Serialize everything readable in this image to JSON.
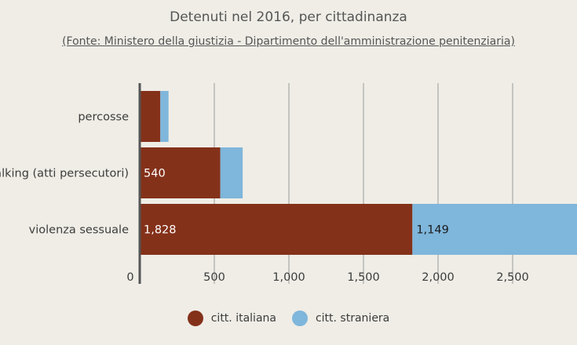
{
  "chart_data": {
    "type": "bar",
    "orientation": "horizontal",
    "stacked": true,
    "title": "Detenuti nel 2016, per cittadinanza",
    "subtitle": "(Fonte: Ministero della giustizia - Dipartimento dell'amministrazione penitenziaria)",
    "categories": [
      "percosse",
      "stalking (atti persecutori)",
      "violenza sessuale"
    ],
    "series": [
      {
        "name": "citt. italiana",
        "color": "#84311a",
        "values": [
          138,
          540,
          1828
        ],
        "labels": [
          "",
          "540",
          "1,828"
        ]
      },
      {
        "name": "citt. straniera",
        "color": "#7fb6db",
        "values": [
          55,
          150,
          1149
        ],
        "labels": [
          "",
          "",
          "1,149"
        ]
      }
    ],
    "xticks": [
      0,
      500,
      1000,
      1500,
      2000,
      2500
    ],
    "xtick_labels": [
      "0",
      "500",
      "1,000",
      "1,500",
      "2,000",
      "2,500"
    ],
    "xlim": [
      0,
      2950
    ],
    "grid": true,
    "legend_position": "bottom"
  }
}
